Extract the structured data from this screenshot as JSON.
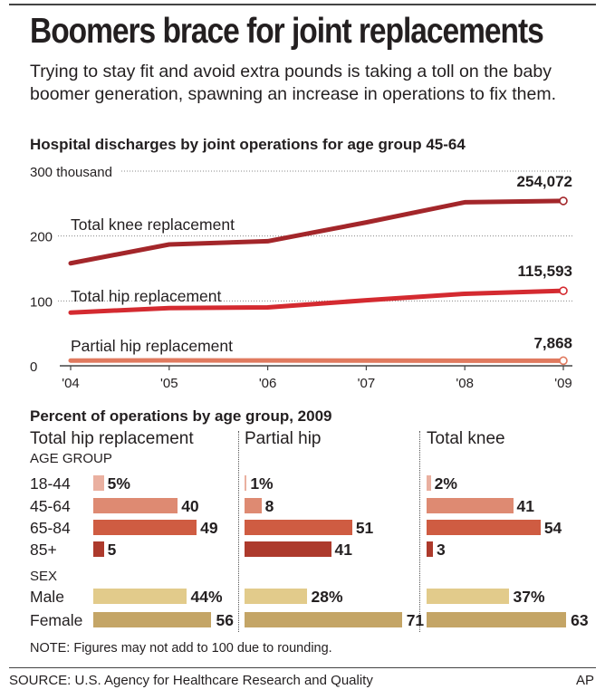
{
  "title": "Boomers brace for joint replacements",
  "subtitle": "Trying to stay fit and avoid extra pounds is taking a toll on the baby boomer generation, spawning an increase in operations to fix them.",
  "colors": {
    "knee": "#a3262a",
    "total_hip": "#d42a30",
    "partial_hip": "#e07a5f",
    "age_18_44": "#eab0a0",
    "age_45_64": "#de8a72",
    "age_65_84": "#cf5c42",
    "age_85_plus": "#ad3a2c",
    "male": "#e2cb8b",
    "female": "#c4a566"
  },
  "chart_data": [
    {
      "type": "line",
      "title": "Hospital discharges by joint operations for age group 45-64",
      "xlabel": "",
      "ylabel": "",
      "x": [
        "'04",
        "'05",
        "'06",
        "'07",
        "'08",
        "'09"
      ],
      "y_ticks": [
        "0",
        "100",
        "200",
        "300 thousand"
      ],
      "ylim": [
        0,
        300
      ],
      "units": "thousand",
      "grid": true,
      "series": [
        {
          "name": "Total knee replacement",
          "values": [
            158,
            187,
            192,
            221,
            252,
            254.072
          ],
          "end_label": "254,072"
        },
        {
          "name": "Total hip replacement",
          "values": [
            82,
            89,
            90,
            101,
            111,
            115.593
          ],
          "end_label": "115,593"
        },
        {
          "name": "Partial hip replacement",
          "values": [
            8.1,
            8.3,
            8.2,
            8.0,
            7.9,
            7.868
          ],
          "end_label": "7,868"
        }
      ]
    },
    {
      "type": "bar",
      "title": "Percent of operations by age group, 2009",
      "age_group_label": "AGE GROUP",
      "sex_label": "SEX",
      "age_categories": [
        "18-44",
        "45-64",
        "65-84",
        "85+"
      ],
      "sex_categories": [
        "Male",
        "Female"
      ],
      "units": "percent",
      "panels": [
        {
          "name": "Total hip replacement",
          "age_values": [
            5,
            40,
            49,
            5
          ],
          "sex_values": [
            44,
            56
          ]
        },
        {
          "name": "Partial hip",
          "age_values": [
            1,
            8,
            51,
            41
          ],
          "sex_values": [
            28,
            71
          ]
        },
        {
          "name": "Total knee",
          "age_values": [
            2,
            41,
            54,
            3
          ],
          "sex_values": [
            37,
            63
          ]
        }
      ]
    }
  ],
  "note": "NOTE: Figures may not add to 100 due to rounding.",
  "source": "SOURCE: U.S. Agency for Healthcare Research and Quality",
  "credit": "AP"
}
